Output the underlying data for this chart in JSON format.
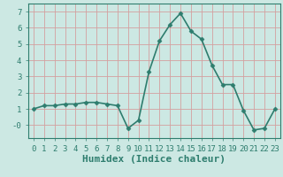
{
  "x": [
    0,
    1,
    2,
    3,
    4,
    5,
    6,
    7,
    8,
    9,
    10,
    11,
    12,
    13,
    14,
    15,
    16,
    17,
    18,
    19,
    20,
    21,
    22,
    23
  ],
  "y": [
    1.0,
    1.2,
    1.2,
    1.3,
    1.3,
    1.4,
    1.4,
    1.3,
    1.2,
    -0.2,
    0.3,
    3.3,
    5.2,
    6.2,
    6.9,
    5.8,
    5.3,
    3.7,
    2.5,
    2.5,
    0.9,
    -0.3,
    -0.2,
    1.0
  ],
  "line_color": "#2e7d6e",
  "marker": "D",
  "marker_size": 2.5,
  "bg_color": "#cce8e3",
  "grid_color": "#b0d8d2",
  "xlabel": "Humidex (Indice chaleur)",
  "xlabel_fontsize": 8,
  "xlim": [
    -0.5,
    23.5
  ],
  "ylim": [
    -0.8,
    7.5
  ],
  "yticks": [
    0,
    1,
    2,
    3,
    4,
    5,
    6,
    7
  ],
  "ytick_labels": [
    "-0",
    "1",
    "2",
    "3",
    "4",
    "5",
    "6",
    "7"
  ],
  "xticks": [
    0,
    1,
    2,
    3,
    4,
    5,
    6,
    7,
    8,
    9,
    10,
    11,
    12,
    13,
    14,
    15,
    16,
    17,
    18,
    19,
    20,
    21,
    22,
    23
  ],
  "tick_fontsize": 6.5,
  "line_width": 1.2
}
